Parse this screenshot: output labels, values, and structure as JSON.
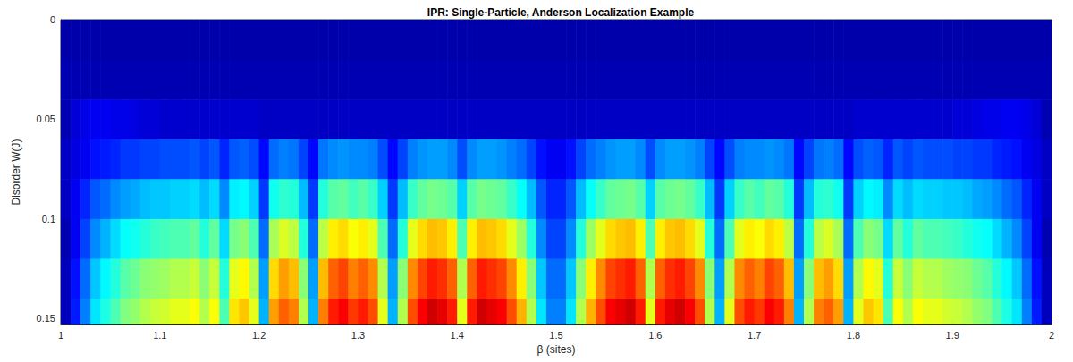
{
  "chart_data": {
    "type": "heatmap",
    "title": "IPR: Single-Particle, Anderson Localization Example",
    "x_label": "β (sites)",
    "y_label": "Disorder W(J)",
    "xlim": [
      1,
      2
    ],
    "xticks": [
      1,
      1.1,
      1.2,
      1.3,
      1.4,
      1.5,
      1.6,
      1.7,
      1.8,
      1.9,
      2
    ],
    "ylim": [
      0,
      0.153
    ],
    "yticks": [
      0,
      0.05,
      0.1,
      0.15
    ],
    "grid": false,
    "color_range": [
      0,
      1
    ],
    "x_edges": [
      1,
      1.01,
      1.02,
      1.03,
      1.04,
      1.05,
      1.06,
      1.07,
      1.08,
      1.09,
      1.1,
      1.11,
      1.12,
      1.13,
      1.14,
      1.15,
      1.16,
      1.17,
      1.18,
      1.19,
      1.2,
      1.21,
      1.22,
      1.23,
      1.24,
      1.25,
      1.26,
      1.27,
      1.28,
      1.29,
      1.3,
      1.31,
      1.32,
      1.33,
      1.34,
      1.35,
      1.36,
      1.37,
      1.38,
      1.39,
      1.4,
      1.41,
      1.42,
      1.43,
      1.44,
      1.45,
      1.46,
      1.47,
      1.48,
      1.49,
      1.5,
      1.51,
      1.52,
      1.53,
      1.54,
      1.55,
      1.56,
      1.57,
      1.58,
      1.59,
      1.6,
      1.61,
      1.62,
      1.63,
      1.64,
      1.65,
      1.66,
      1.67,
      1.68,
      1.69,
      1.7,
      1.71,
      1.72,
      1.73,
      1.74,
      1.75,
      1.76,
      1.77,
      1.78,
      1.79,
      1.8,
      1.81,
      1.82,
      1.83,
      1.84,
      1.85,
      1.86,
      1.87,
      1.88,
      1.89,
      1.9,
      1.91,
      1.92,
      1.93,
      1.94,
      1.95,
      1.96,
      1.97,
      1.98,
      1.99,
      2
    ],
    "y_edges": [
      0,
      0.02,
      0.04,
      0.06,
      0.08,
      0.1,
      0.12,
      0.14,
      0.153
    ],
    "cells": [
      [
        0.03,
        0.03,
        0.03,
        0.03,
        0.03,
        0.03,
        0.03,
        0.03,
        0.03,
        0.03,
        0.03,
        0.03,
        0.03,
        0.03,
        0.03,
        0.03,
        0.03,
        0.03,
        0.03,
        0.03,
        0.03,
        0.03,
        0.03,
        0.03,
        0.03,
        0.03,
        0.03,
        0.03,
        0.03,
        0.03,
        0.03,
        0.03,
        0.03,
        0.03,
        0.03,
        0.03,
        0.03,
        0.03,
        0.03,
        0.03,
        0.03,
        0.03,
        0.03,
        0.03,
        0.03,
        0.03,
        0.03,
        0.03,
        0.03,
        0.03,
        0.03,
        0.03,
        0.03,
        0.03,
        0.03,
        0.03,
        0.03,
        0.03,
        0.03,
        0.03,
        0.03,
        0.03,
        0.03,
        0.03,
        0.03,
        0.03,
        0.03,
        0.03,
        0.03,
        0.03,
        0.03,
        0.03,
        0.03,
        0.03,
        0.03,
        0.03,
        0.03,
        0.03,
        0.03,
        0.03,
        0.03,
        0.03,
        0.03,
        0.03,
        0.03,
        0.03,
        0.03,
        0.03,
        0.03,
        0.03,
        0.03,
        0.03,
        0.03,
        0.03,
        0.03,
        0.03,
        0.03,
        0.03,
        0.03,
        0.03
      ],
      [
        0.04,
        0.04,
        0.04,
        0.04,
        0.04,
        0.04,
        0.04,
        0.04,
        0.04,
        0.04,
        0.04,
        0.04,
        0.04,
        0.04,
        0.04,
        0.04,
        0.04,
        0.04,
        0.04,
        0.04,
        0.04,
        0.04,
        0.04,
        0.04,
        0.04,
        0.04,
        0.04,
        0.04,
        0.04,
        0.04,
        0.04,
        0.04,
        0.04,
        0.04,
        0.04,
        0.04,
        0.04,
        0.04,
        0.04,
        0.04,
        0.04,
        0.04,
        0.04,
        0.04,
        0.04,
        0.04,
        0.04,
        0.04,
        0.04,
        0.04,
        0.04,
        0.04,
        0.04,
        0.04,
        0.04,
        0.04,
        0.04,
        0.04,
        0.04,
        0.04,
        0.04,
        0.04,
        0.04,
        0.04,
        0.04,
        0.04,
        0.04,
        0.04,
        0.04,
        0.04,
        0.04,
        0.04,
        0.04,
        0.04,
        0.04,
        0.04,
        0.04,
        0.04,
        0.04,
        0.04,
        0.04,
        0.04,
        0.04,
        0.04,
        0.04,
        0.04,
        0.04,
        0.04,
        0.04,
        0.04,
        0.04,
        0.04,
        0.04,
        0.04,
        0.04,
        0.04,
        0.04,
        0.04,
        0.04,
        0.04
      ],
      [
        0.04,
        0.08,
        0.1,
        0.11,
        0.11,
        0.1,
        0.1,
        0.09,
        0.08,
        0.08,
        0.07,
        0.07,
        0.07,
        0.07,
        0.07,
        0.07,
        0.07,
        0.07,
        0.07,
        0.07,
        0.06,
        0.06,
        0.06,
        0.06,
        0.06,
        0.06,
        0.06,
        0.06,
        0.06,
        0.06,
        0.06,
        0.06,
        0.06,
        0.06,
        0.06,
        0.06,
        0.06,
        0.06,
        0.06,
        0.06,
        0.06,
        0.06,
        0.06,
        0.06,
        0.06,
        0.06,
        0.06,
        0.06,
        0.06,
        0.06,
        0.06,
        0.06,
        0.06,
        0.06,
        0.06,
        0.06,
        0.06,
        0.06,
        0.06,
        0.06,
        0.06,
        0.06,
        0.06,
        0.06,
        0.06,
        0.06,
        0.06,
        0.06,
        0.06,
        0.06,
        0.06,
        0.06,
        0.06,
        0.06,
        0.06,
        0.06,
        0.06,
        0.06,
        0.06,
        0.06,
        0.07,
        0.07,
        0.07,
        0.07,
        0.07,
        0.07,
        0.07,
        0.07,
        0.07,
        0.07,
        0.08,
        0.08,
        0.09,
        0.1,
        0.1,
        0.11,
        0.11,
        0.1,
        0.08,
        0.04
      ],
      [
        0.06,
        0.09,
        0.11,
        0.14,
        0.15,
        0.16,
        0.18,
        0.18,
        0.19,
        0.19,
        0.2,
        0.2,
        0.2,
        0.21,
        0.19,
        0.21,
        0.16,
        0.21,
        0.22,
        0.2,
        0.13,
        0.23,
        0.25,
        0.24,
        0.19,
        0.13,
        0.24,
        0.26,
        0.27,
        0.26,
        0.26,
        0.25,
        0.2,
        0.13,
        0.19,
        0.25,
        0.27,
        0.28,
        0.28,
        0.26,
        0.2,
        0.26,
        0.28,
        0.28,
        0.27,
        0.25,
        0.23,
        0.19,
        0.14,
        0.11,
        0.11,
        0.14,
        0.19,
        0.23,
        0.25,
        0.27,
        0.28,
        0.28,
        0.26,
        0.2,
        0.26,
        0.28,
        0.28,
        0.27,
        0.25,
        0.19,
        0.13,
        0.2,
        0.25,
        0.26,
        0.26,
        0.27,
        0.26,
        0.24,
        0.13,
        0.19,
        0.24,
        0.25,
        0.23,
        0.13,
        0.2,
        0.22,
        0.21,
        0.16,
        0.21,
        0.19,
        0.21,
        0.2,
        0.2,
        0.2,
        0.19,
        0.19,
        0.18,
        0.18,
        0.16,
        0.15,
        0.14,
        0.11,
        0.09,
        0.06
      ],
      [
        0.06,
        0.11,
        0.16,
        0.21,
        0.23,
        0.26,
        0.28,
        0.29,
        0.31,
        0.32,
        0.32,
        0.33,
        0.33,
        0.34,
        0.31,
        0.34,
        0.26,
        0.36,
        0.37,
        0.33,
        0.18,
        0.39,
        0.42,
        0.41,
        0.31,
        0.18,
        0.41,
        0.46,
        0.47,
        0.44,
        0.46,
        0.43,
        0.33,
        0.18,
        0.31,
        0.43,
        0.47,
        0.49,
        0.48,
        0.46,
        0.33,
        0.46,
        0.49,
        0.48,
        0.47,
        0.43,
        0.38,
        0.31,
        0.21,
        0.16,
        0.16,
        0.21,
        0.31,
        0.38,
        0.43,
        0.47,
        0.48,
        0.49,
        0.46,
        0.33,
        0.46,
        0.48,
        0.49,
        0.47,
        0.43,
        0.31,
        0.18,
        0.33,
        0.43,
        0.46,
        0.44,
        0.47,
        0.46,
        0.41,
        0.18,
        0.31,
        0.41,
        0.42,
        0.39,
        0.18,
        0.33,
        0.37,
        0.36,
        0.26,
        0.34,
        0.31,
        0.34,
        0.33,
        0.33,
        0.32,
        0.32,
        0.31,
        0.29,
        0.28,
        0.26,
        0.23,
        0.21,
        0.16,
        0.11,
        0.06
      ],
      [
        0.04,
        0.11,
        0.19,
        0.26,
        0.3,
        0.34,
        0.38,
        0.39,
        0.41,
        0.43,
        0.44,
        0.45,
        0.45,
        0.47,
        0.41,
        0.47,
        0.34,
        0.49,
        0.51,
        0.45,
        0.23,
        0.54,
        0.59,
        0.56,
        0.41,
        0.23,
        0.56,
        0.64,
        0.66,
        0.62,
        0.64,
        0.6,
        0.45,
        0.23,
        0.41,
        0.6,
        0.66,
        0.69,
        0.68,
        0.64,
        0.45,
        0.64,
        0.69,
        0.68,
        0.66,
        0.6,
        0.53,
        0.41,
        0.26,
        0.19,
        0.19,
        0.26,
        0.41,
        0.53,
        0.6,
        0.66,
        0.68,
        0.69,
        0.64,
        0.45,
        0.64,
        0.68,
        0.69,
        0.66,
        0.6,
        0.41,
        0.23,
        0.45,
        0.6,
        0.64,
        0.62,
        0.66,
        0.64,
        0.56,
        0.23,
        0.41,
        0.56,
        0.59,
        0.54,
        0.23,
        0.45,
        0.51,
        0.49,
        0.34,
        0.47,
        0.41,
        0.47,
        0.45,
        0.45,
        0.44,
        0.43,
        0.41,
        0.39,
        0.38,
        0.34,
        0.3,
        0.26,
        0.19,
        0.11,
        0.04
      ],
      [
        0.05,
        0.14,
        0.23,
        0.32,
        0.37,
        0.41,
        0.46,
        0.48,
        0.51,
        0.52,
        0.53,
        0.55,
        0.55,
        0.57,
        0.51,
        0.57,
        0.41,
        0.6,
        0.63,
        0.55,
        0.28,
        0.66,
        0.72,
        0.69,
        0.51,
        0.28,
        0.69,
        0.78,
        0.81,
        0.75,
        0.78,
        0.74,
        0.55,
        0.28,
        0.51,
        0.74,
        0.81,
        0.85,
        0.83,
        0.78,
        0.55,
        0.78,
        0.85,
        0.83,
        0.81,
        0.74,
        0.64,
        0.51,
        0.32,
        0.23,
        0.23,
        0.32,
        0.51,
        0.64,
        0.74,
        0.81,
        0.83,
        0.85,
        0.78,
        0.55,
        0.78,
        0.83,
        0.85,
        0.81,
        0.74,
        0.51,
        0.28,
        0.55,
        0.74,
        0.78,
        0.75,
        0.81,
        0.78,
        0.69,
        0.28,
        0.51,
        0.69,
        0.72,
        0.66,
        0.28,
        0.55,
        0.63,
        0.6,
        0.41,
        0.57,
        0.51,
        0.57,
        0.55,
        0.55,
        0.53,
        0.52,
        0.51,
        0.48,
        0.46,
        0.41,
        0.37,
        0.32,
        0.23,
        0.14,
        0.05
      ],
      [
        0.05,
        0.15,
        0.25,
        0.35,
        0.4,
        0.45,
        0.5,
        0.52,
        0.55,
        0.57,
        0.58,
        0.6,
        0.6,
        0.62,
        0.55,
        0.62,
        0.45,
        0.65,
        0.68,
        0.6,
        0.3,
        0.72,
        0.78,
        0.75,
        0.55,
        0.3,
        0.75,
        0.85,
        0.88,
        0.82,
        0.85,
        0.8,
        0.6,
        0.3,
        0.55,
        0.8,
        0.88,
        0.92,
        0.9,
        0.85,
        0.6,
        0.85,
        0.92,
        0.9,
        0.88,
        0.8,
        0.7,
        0.55,
        0.35,
        0.25,
        0.25,
        0.35,
        0.55,
        0.7,
        0.8,
        0.88,
        0.9,
        0.92,
        0.85,
        0.6,
        0.85,
        0.9,
        0.92,
        0.88,
        0.8,
        0.55,
        0.3,
        0.6,
        0.8,
        0.85,
        0.82,
        0.88,
        0.85,
        0.75,
        0.3,
        0.55,
        0.75,
        0.78,
        0.72,
        0.3,
        0.6,
        0.68,
        0.65,
        0.45,
        0.62,
        0.55,
        0.62,
        0.6,
        0.6,
        0.58,
        0.57,
        0.55,
        0.52,
        0.5,
        0.45,
        0.4,
        0.35,
        0.25,
        0.15,
        0.05
      ]
    ]
  }
}
